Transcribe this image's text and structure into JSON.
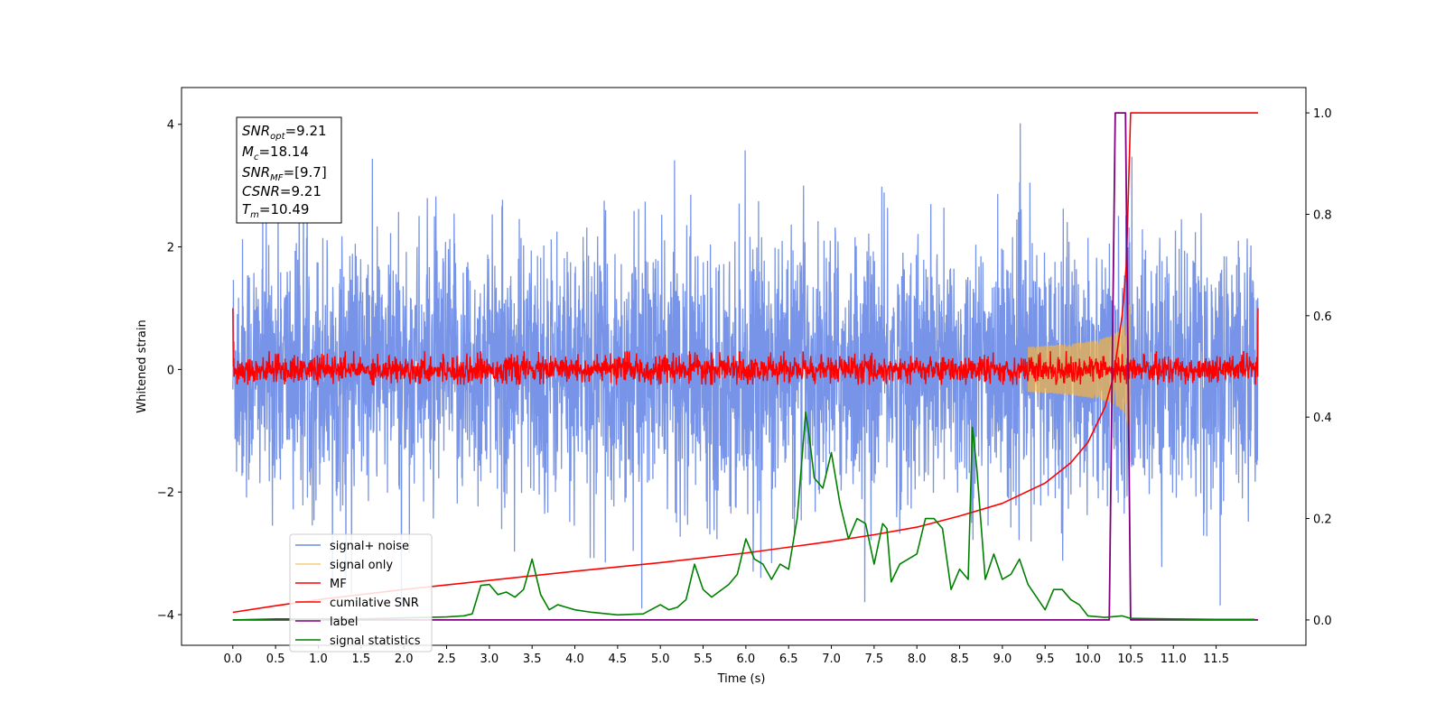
{
  "chart_data": {
    "type": "line",
    "xlabel": "Time (s)",
    "ylabel_left": "Whitened strain",
    "ylabel_right": "",
    "xlim": [
      -0.6,
      12.55
    ],
    "ylim_left": [
      -4.5,
      4.6
    ],
    "ylim_right": [
      -0.05,
      1.05
    ],
    "x_ticks": [
      0.0,
      0.5,
      1.0,
      1.5,
      2.0,
      2.5,
      3.0,
      3.5,
      4.0,
      4.5,
      5.0,
      5.5,
      6.0,
      6.5,
      7.0,
      7.5,
      8.0,
      8.5,
      9.0,
      9.5,
      10.0,
      10.5,
      11.0,
      11.5
    ],
    "x_tick_labels": [
      "0.0",
      "0.5",
      "1.0",
      "1.5",
      "2.0",
      "2.5",
      "3.0",
      "3.5",
      "4.0",
      "4.5",
      "5.0",
      "5.5",
      "6.0",
      "6.5",
      "7.0",
      "7.5",
      "8.0",
      "8.5",
      "9.0",
      "9.5",
      "10.0",
      "10.5",
      "11.0",
      "11.5"
    ],
    "y_ticks_left": [
      -4,
      -2,
      0,
      2,
      4
    ],
    "y_tick_labels_left": [
      "−4",
      "−2",
      "0",
      "2",
      "4"
    ],
    "y_ticks_right": [
      0.0,
      0.2,
      0.4,
      0.6,
      0.8,
      1.0
    ],
    "y_tick_labels_right": [
      "0.0",
      "0.2",
      "0.4",
      "0.6",
      "0.8",
      "1.0"
    ],
    "grid": false,
    "legend_position": "lower-left",
    "annotation": {
      "snr_opt": "9.21",
      "mc": "18.14",
      "snr_mf": "[9.7]",
      "csnr": "9.21",
      "tm": "10.49"
    },
    "series": [
      {
        "name": "signal+ noise",
        "color": "#6b8be6",
        "axis": "left",
        "t_start": 0.0,
        "t_end": 11.99,
        "amplitude_range": [
          -3.9,
          4.15
        ],
        "description_values": "dense noise band roughly between -2.5 and 2.5 with spikes to ~4.1"
      },
      {
        "name": "signal only",
        "color": "#f5b342",
        "axis": "left",
        "t_start": 9.3,
        "t_end": 10.5,
        "peak_amplitude": 1.7
      },
      {
        "name": "MF",
        "color": "#ff0000",
        "axis": "left",
        "t_start": 0.0,
        "t_end": 11.99,
        "noise_amplitude": 0.25,
        "edge_values": [
          1.0,
          1.0
        ]
      },
      {
        "name": "cumilative SNR",
        "color": "#ff0000",
        "axis": "right",
        "x": [
          0.0,
          0.5,
          1.0,
          2.0,
          3.0,
          4.0,
          5.0,
          6.0,
          7.0,
          7.5,
          8.0,
          8.5,
          9.0,
          9.5,
          9.8,
          10.0,
          10.2,
          10.3,
          10.4,
          10.45,
          10.48,
          10.5,
          11.99
        ],
        "values": [
          0.015,
          0.028,
          0.04,
          0.06,
          0.078,
          0.096,
          0.113,
          0.132,
          0.155,
          0.168,
          0.183,
          0.205,
          0.23,
          0.27,
          0.31,
          0.35,
          0.42,
          0.48,
          0.6,
          0.7,
          0.88,
          1.0,
          1.0
        ]
      },
      {
        "name": "label",
        "color": "#800080",
        "axis": "right",
        "x": [
          0.0,
          10.25,
          10.32,
          10.44,
          10.5,
          11.99
        ],
        "values": [
          0.0,
          0.0,
          1.0,
          1.0,
          0.0,
          0.0
        ]
      },
      {
        "name": "signal statistics",
        "color": "#008000",
        "axis": "right",
        "x": [
          0.0,
          0.5,
          1.0,
          1.5,
          2.0,
          2.5,
          2.7,
          2.8,
          2.9,
          3.0,
          3.1,
          3.2,
          3.3,
          3.4,
          3.5,
          3.6,
          3.7,
          3.8,
          3.9,
          4.0,
          4.2,
          4.5,
          4.8,
          5.0,
          5.1,
          5.2,
          5.3,
          5.4,
          5.5,
          5.6,
          5.8,
          5.9,
          6.0,
          6.1,
          6.2,
          6.3,
          6.4,
          6.5,
          6.6,
          6.7,
          6.75,
          6.8,
          6.9,
          7.0,
          7.1,
          7.2,
          7.3,
          7.4,
          7.5,
          7.6,
          7.65,
          7.7,
          7.8,
          7.9,
          8.0,
          8.1,
          8.2,
          8.3,
          8.4,
          8.5,
          8.6,
          8.65,
          8.7,
          8.8,
          8.9,
          9.0,
          9.1,
          9.2,
          9.3,
          9.5,
          9.6,
          9.7,
          9.8,
          9.9,
          10.0,
          10.2,
          10.4,
          10.5,
          11.0,
          11.5,
          11.95
        ],
        "values": [
          0.0,
          0.002,
          0.002,
          0.002,
          0.004,
          0.006,
          0.008,
          0.012,
          0.068,
          0.07,
          0.05,
          0.055,
          0.045,
          0.06,
          0.12,
          0.05,
          0.02,
          0.03,
          0.025,
          0.02,
          0.015,
          0.01,
          0.012,
          0.03,
          0.02,
          0.025,
          0.04,
          0.11,
          0.06,
          0.045,
          0.07,
          0.09,
          0.16,
          0.12,
          0.11,
          0.08,
          0.11,
          0.1,
          0.2,
          0.41,
          0.35,
          0.28,
          0.26,
          0.33,
          0.23,
          0.16,
          0.2,
          0.19,
          0.11,
          0.19,
          0.18,
          0.075,
          0.11,
          0.12,
          0.13,
          0.2,
          0.2,
          0.18,
          0.06,
          0.1,
          0.08,
          0.38,
          0.3,
          0.08,
          0.13,
          0.08,
          0.09,
          0.12,
          0.07,
          0.02,
          0.06,
          0.06,
          0.04,
          0.03,
          0.008,
          0.005,
          0.008,
          0.003,
          0.002,
          0.001,
          0.001
        ]
      }
    ]
  }
}
